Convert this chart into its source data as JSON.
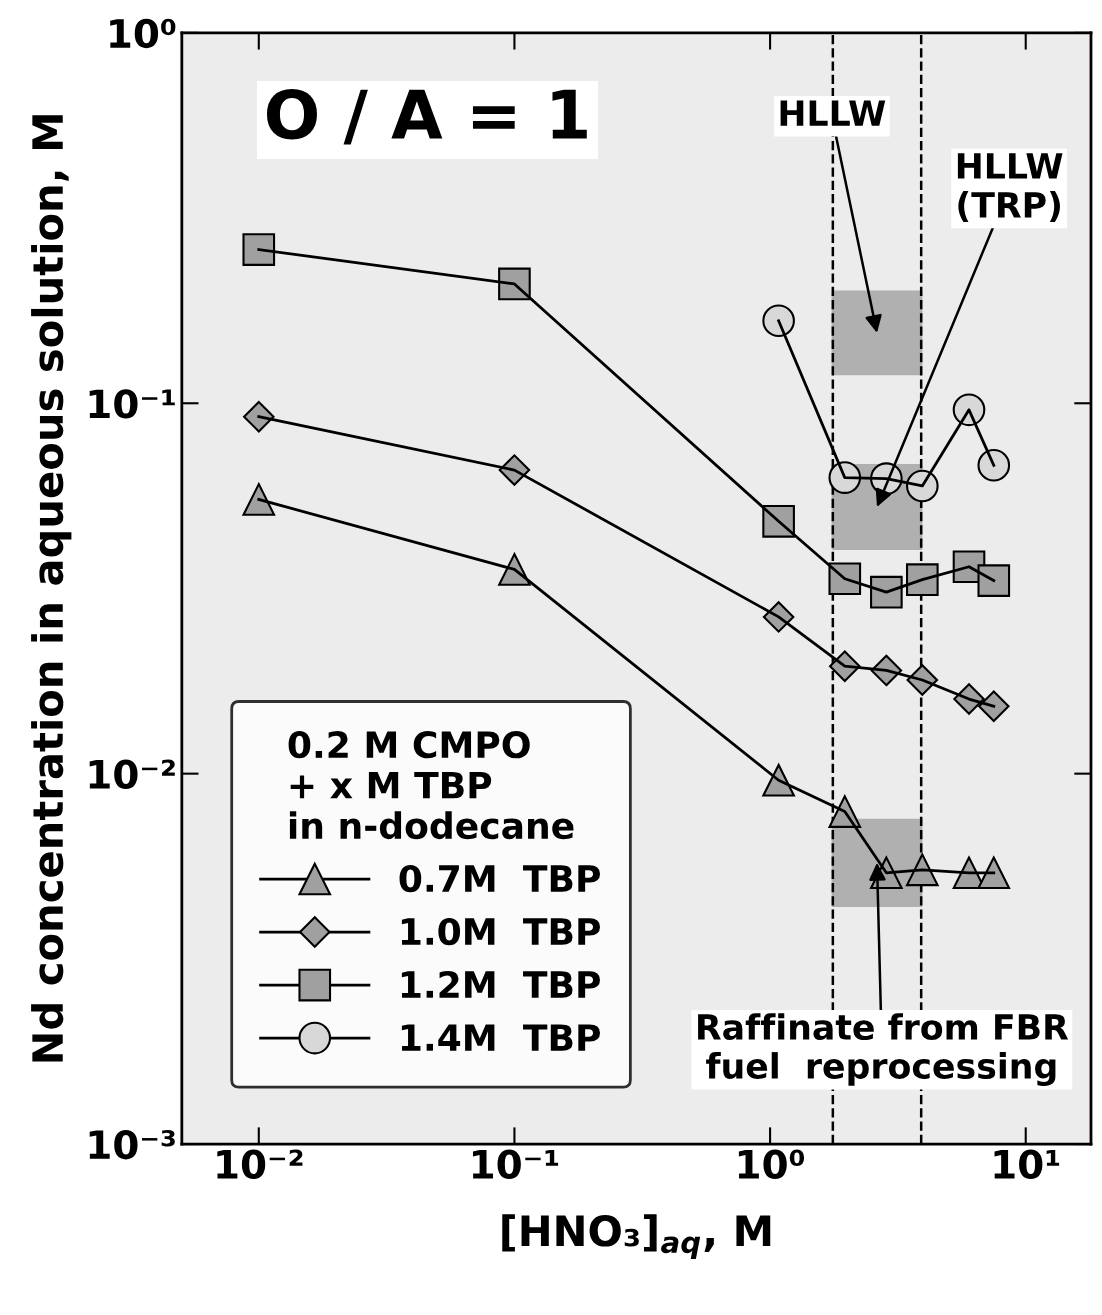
{
  "chart_data": {
    "type": "line",
    "log": "xy",
    "xlabel": "[HNO₃]$_{aq}$, M",
    "ylabel": "Nd concentration in aqueous solution, M",
    "legend_title": "0.2 M CMPO\n+ x M TBP\nin n-dodecane",
    "legend": "bottom left",
    "xlim": [
      0.005,
      18
    ],
    "ylim": [
      0.001,
      1
    ],
    "xticks": [
      {
        "value": 0.01,
        "label": "10⁻²"
      },
      {
        "value": 0.1,
        "label": "10⁻¹"
      },
      {
        "value": 1,
        "label": "10⁰"
      },
      {
        "value": 10,
        "label": "10¹"
      }
    ],
    "yticks": [
      {
        "value": 0.001,
        "label": "10⁻³"
      },
      {
        "value": 0.01,
        "label": "10⁻²"
      },
      {
        "value": 0.1,
        "label": "10⁻¹"
      },
      {
        "value": 1,
        "label": "10⁰"
      }
    ],
    "grid": false,
    "line_style": "solid",
    "series": [
      {
        "name": "0.7M  TBP",
        "marker": "triangle",
        "color": "#a0a0a0",
        "x": [
          0.01,
          0.1,
          1.08,
          1.96,
          2.85,
          3.94,
          6.0,
          7.5
        ],
        "values": [
          0.055,
          0.0356,
          0.0096,
          0.0079,
          0.0054,
          0.0055,
          0.0054,
          0.0054
        ]
      },
      {
        "name": "1.0M  TBP",
        "marker": "diamond",
        "color": "#a0a0a0",
        "x": [
          0.01,
          0.1,
          1.08,
          1.96,
          2.85,
          3.94,
          6.0,
          7.5
        ],
        "values": [
          0.092,
          0.066,
          0.0265,
          0.0195,
          0.019,
          0.0179,
          0.0159,
          0.0152
        ]
      },
      {
        "name": "1.2M  TBP",
        "marker": "square",
        "color": "#a0a0a0",
        "x": [
          0.01,
          0.1,
          1.08,
          1.96,
          2.85,
          3.94,
          6.0,
          7.5
        ],
        "values": [
          0.26,
          0.21,
          0.048,
          0.0336,
          0.0309,
          0.0334,
          0.0362,
          0.0332
        ]
      },
      {
        "name": "1.4M  TBP",
        "marker": "circle",
        "color": "#d8d8d8",
        "x": [
          1.08,
          1.96,
          2.85,
          3.94,
          6.0,
          7.5
        ],
        "values": [
          0.167,
          0.063,
          0.0626,
          0.0598,
          0.096,
          0.068
        ]
      }
    ],
    "bands": [
      {
        "axis": "y",
        "from": 0.12,
        "to": 0.2,
        "label": "HLLW",
        "color": "#b0b0b0"
      },
      {
        "axis": "y",
        "from": 0.0405,
        "to": 0.068,
        "label": "HLLW\n(TRP)",
        "color": "#b0b0b0"
      },
      {
        "axis": "y",
        "from": 0.0044,
        "to": 0.0075,
        "label": "Raffinate from FBR\nfuel  reprocessing",
        "color": "#b0b0b0"
      }
    ],
    "ref_lines": [
      {
        "axis": "x",
        "value": 1.76,
        "line_style": "dashed"
      },
      {
        "axis": "x",
        "value": 3.9,
        "line_style": "dashed"
      }
    ],
    "annotations": [
      "O / A = 1"
    ]
  }
}
